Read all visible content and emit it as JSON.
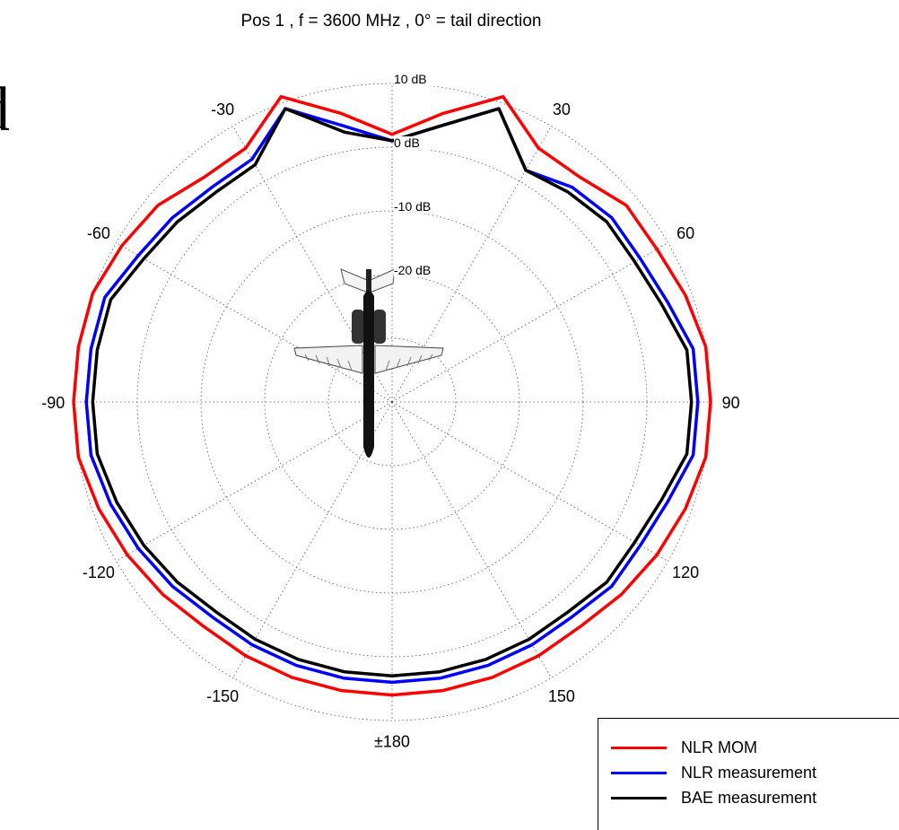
{
  "chart_data": {
    "type": "polar-line",
    "title": "Pos 1 , f = 3600 MHz , 0° = tail direction",
    "radial_unit": "dB",
    "radial_ticks": [
      {
        "value": 10,
        "label": "10 dB"
      },
      {
        "value": 0,
        "label": "0 dB"
      },
      {
        "value": -10,
        "label": "-10 dB"
      },
      {
        "value": -20,
        "label": "-20 dB"
      }
    ],
    "angle_ticks": [
      {
        "value": 0,
        "label": ""
      },
      {
        "value": 30,
        "label": "30"
      },
      {
        "value": 60,
        "label": "60"
      },
      {
        "value": 90,
        "label": "90"
      },
      {
        "value": 120,
        "label": "120"
      },
      {
        "value": 150,
        "label": "150"
      },
      {
        "value": 180,
        "label": "±180"
      },
      {
        "value": -150,
        "label": "-150"
      },
      {
        "value": -120,
        "label": "-120"
      },
      {
        "value": -90,
        "label": "-90"
      },
      {
        "value": -60,
        "label": "-60"
      },
      {
        "value": -30,
        "label": "-30"
      }
    ],
    "angles": [
      0,
      10,
      20,
      30,
      40,
      50,
      60,
      70,
      80,
      90,
      100,
      110,
      120,
      130,
      140,
      150,
      160,
      170,
      180,
      -170,
      -160,
      -150,
      -140,
      -130,
      -120,
      -110,
      -100,
      -90,
      -80,
      -70,
      -60,
      -50,
      -40,
      -30,
      -20,
      -10
    ],
    "series": [
      {
        "name": "NLR MOM",
        "color": "#ff0000",
        "values": [
          2,
          6,
          11,
          6,
          6,
          8,
          8,
          9,
          10,
          10,
          10,
          9,
          8,
          7,
          6,
          6,
          6,
          6,
          6,
          6,
          6,
          6,
          6,
          7,
          8,
          9,
          10,
          10,
          10,
          10,
          9,
          8,
          6,
          6,
          11,
          6
        ]
      },
      {
        "name": "NLR measurement",
        "color": "#0000ff",
        "values": [
          1,
          4,
          9,
          2,
          4,
          5,
          5,
          6,
          8,
          8,
          8,
          6,
          5,
          5,
          4,
          4,
          4,
          4,
          4,
          4,
          4,
          4,
          4,
          5,
          6,
          7,
          8,
          8,
          8,
          8,
          6,
          5,
          4,
          4,
          9,
          4
        ]
      },
      {
        "name": "BAE measurement",
        "color": "#000000",
        "values": [
          1,
          4,
          9,
          2,
          3,
          4,
          4,
          5,
          7,
          7,
          7,
          5,
          4,
          4,
          3,
          3,
          3,
          3,
          3,
          3,
          3,
          3,
          3,
          4,
          5,
          6,
          7,
          7,
          7,
          7,
          5,
          4,
          3,
          3,
          9,
          3
        ]
      }
    ],
    "rlim": [
      -40,
      10
    ],
    "grid": true,
    "legend": "bottom-right"
  }
}
